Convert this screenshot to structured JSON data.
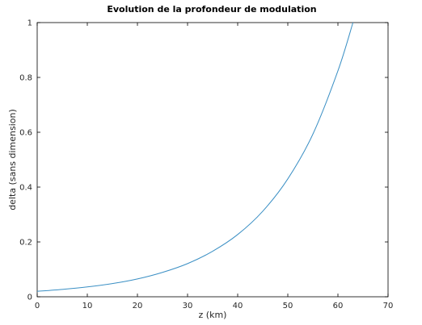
{
  "chart_data": {
    "type": "line",
    "title": "Evolution de la profondeur de modulation",
    "xlabel": "z (km)",
    "ylabel": "delta (sans dimension)",
    "xlim": [
      0,
      70
    ],
    "ylim": [
      0,
      1
    ],
    "xticks": [
      0,
      10,
      20,
      30,
      40,
      50,
      60,
      70
    ],
    "yticks": [
      0,
      0.2,
      0.4,
      0.6,
      0.8,
      1
    ],
    "ytick_labels": [
      "0",
      "0.2",
      "0.4",
      "0.6",
      "0.8",
      "1"
    ],
    "grid": false,
    "series": [
      {
        "color": "#3a8fc4",
        "x": [
          0,
          5,
          10,
          15,
          20,
          25,
          30,
          35,
          40,
          45,
          50,
          55,
          60,
          63
        ],
        "y": [
          0.02,
          0.027,
          0.036,
          0.048,
          0.065,
          0.089,
          0.121,
          0.166,
          0.227,
          0.312,
          0.43,
          0.593,
          0.824,
          1.0
        ]
      }
    ]
  }
}
